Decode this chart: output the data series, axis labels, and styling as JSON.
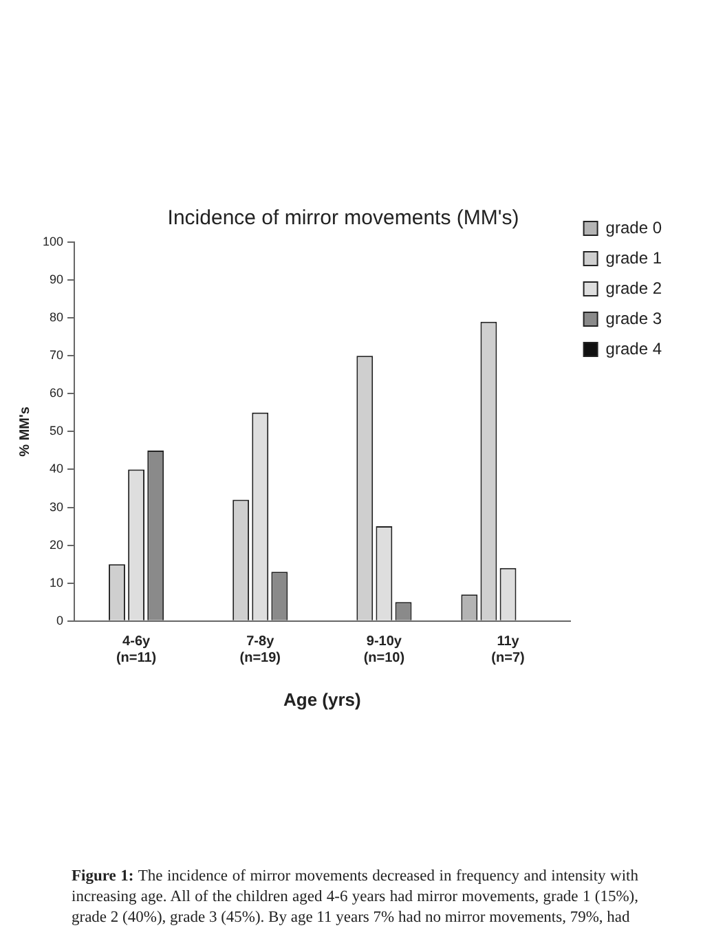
{
  "chart_data": {
    "type": "bar",
    "title": "Incidence of mirror movements (MM's)",
    "xlabel": "Age (yrs)",
    "ylabel": "% MM's",
    "categories": [
      "4-6y\n(n=11)",
      "7-8y\n(n=19)",
      "9-10y\n(n=10)",
      "11y\n(n=7)"
    ],
    "series": [
      {
        "name": "grade 0",
        "color": "#b4b4b4",
        "values": [
          0,
          0,
          0,
          7
        ]
      },
      {
        "name": "grade 1",
        "color": "#cfcfcf",
        "values": [
          15,
          32,
          70,
          79
        ]
      },
      {
        "name": "grade 2",
        "color": "#dedede",
        "values": [
          40,
          55,
          25,
          14
        ]
      },
      {
        "name": "grade 3",
        "color": "#8a8a8a",
        "values": [
          45,
          13,
          5,
          0
        ]
      },
      {
        "name": "grade 4",
        "color": "#111111",
        "values": [
          0,
          0,
          0,
          0
        ]
      }
    ],
    "ylim": [
      0,
      100
    ],
    "yticks": [
      0,
      10,
      20,
      30,
      40,
      50,
      60,
      70,
      80,
      90,
      100
    ],
    "grid": false,
    "legend": "top right",
    "annotations": [
      "Figure 1: The incidence of mirror movements decreased in frequency and intensity with increasing age. All of the children aged 4-6 years had mirror movements, grade 1 (15%), grade 2 (40%), grade 3 (45%). By age 11 years 7% had no mirror movements, 79%, had"
    ]
  }
}
